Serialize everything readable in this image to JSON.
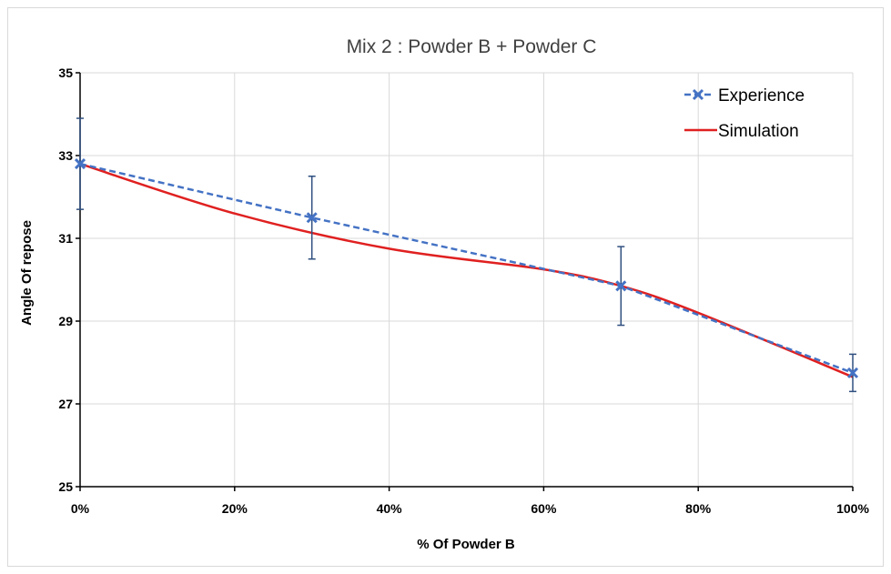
{
  "chart_data": {
    "type": "line",
    "title": "Mix 2 : Powder B + Powder C",
    "xlabel": "% Of Powder B",
    "ylabel": "Angle Of repose",
    "xlim": [
      0,
      100
    ],
    "ylim": [
      25,
      35
    ],
    "x_ticks": [
      0,
      20,
      40,
      60,
      80,
      100
    ],
    "x_tick_labels": [
      "0%",
      "20%",
      "40%",
      "60%",
      "80%",
      "100%"
    ],
    "y_ticks": [
      25,
      27,
      29,
      31,
      33,
      35
    ],
    "y_tick_labels": [
      "25",
      "27",
      "29",
      "31",
      "33",
      "35"
    ],
    "grid": true,
    "legend_position": "top-right",
    "series": [
      {
        "name": "Experience",
        "style": "dashed-with-x-markers",
        "color": "#4472C4",
        "x": [
          0,
          30,
          70,
          100
        ],
        "y": [
          32.8,
          31.5,
          29.85,
          27.75
        ],
        "error": [
          1.1,
          1.0,
          0.95,
          0.45
        ]
      },
      {
        "name": "Simulation",
        "style": "smooth-solid",
        "color": "#E02020",
        "x": [
          0,
          20,
          40,
          60,
          70,
          80,
          100
        ],
        "y": [
          32.8,
          31.6,
          30.75,
          30.25,
          29.85,
          29.2,
          27.65
        ]
      }
    ]
  }
}
